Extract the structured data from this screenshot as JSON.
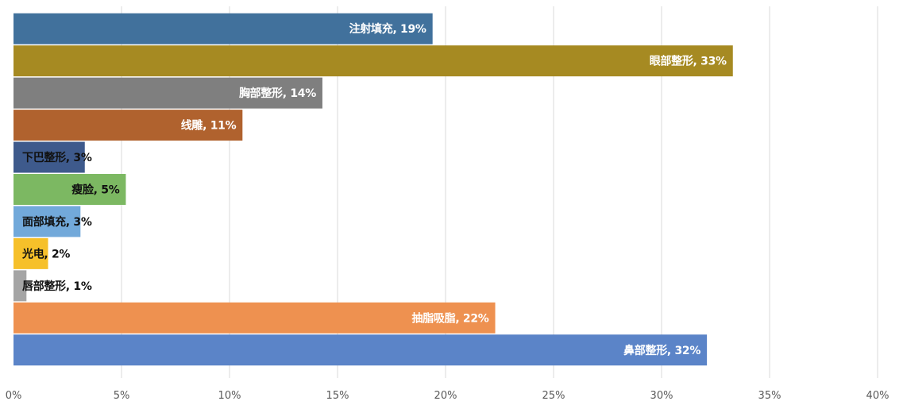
{
  "chart_data": {
    "type": "bar",
    "orientation": "horizontal",
    "categories": [
      "注射填充",
      "眼部整形",
      "胸部整形",
      "线雕",
      "下巴整形",
      "瘦脸",
      "面部填充",
      "光电",
      "唇部整形",
      "抽脂吸脂",
      "鼻部整形"
    ],
    "values": [
      19.4,
      33.3,
      14.3,
      10.6,
      3.3,
      5.2,
      3.1,
      1.6,
      0.6,
      22.3,
      32.1
    ],
    "labels": [
      "注射填充, 19%",
      "眼部整形, 33%",
      "胸部整形, 14%",
      "线雕, 11%",
      "下巴整形, 3%",
      "瘦脸, 5%",
      "面部填充, 3%",
      "光电, 2%",
      "唇部整形, 1%",
      "抽脂吸脂, 22%",
      "鼻部整形, 32%"
    ],
    "colors": [
      "#41719C",
      "#A68A22",
      "#7F7F7F",
      "#B0622E",
      "#3E5A8C",
      "#7CB862",
      "#72A9DA",
      "#F6C02A",
      "#A5A5A5",
      "#EE9150",
      "#5B84C8"
    ],
    "x_ticks": [
      "0%",
      "5%",
      "10%",
      "15%",
      "20%",
      "25%",
      "30%",
      "35%",
      "40%"
    ],
    "xlim": [
      0,
      40
    ],
    "grid": true,
    "title": "",
    "xlabel": "",
    "ylabel": ""
  }
}
